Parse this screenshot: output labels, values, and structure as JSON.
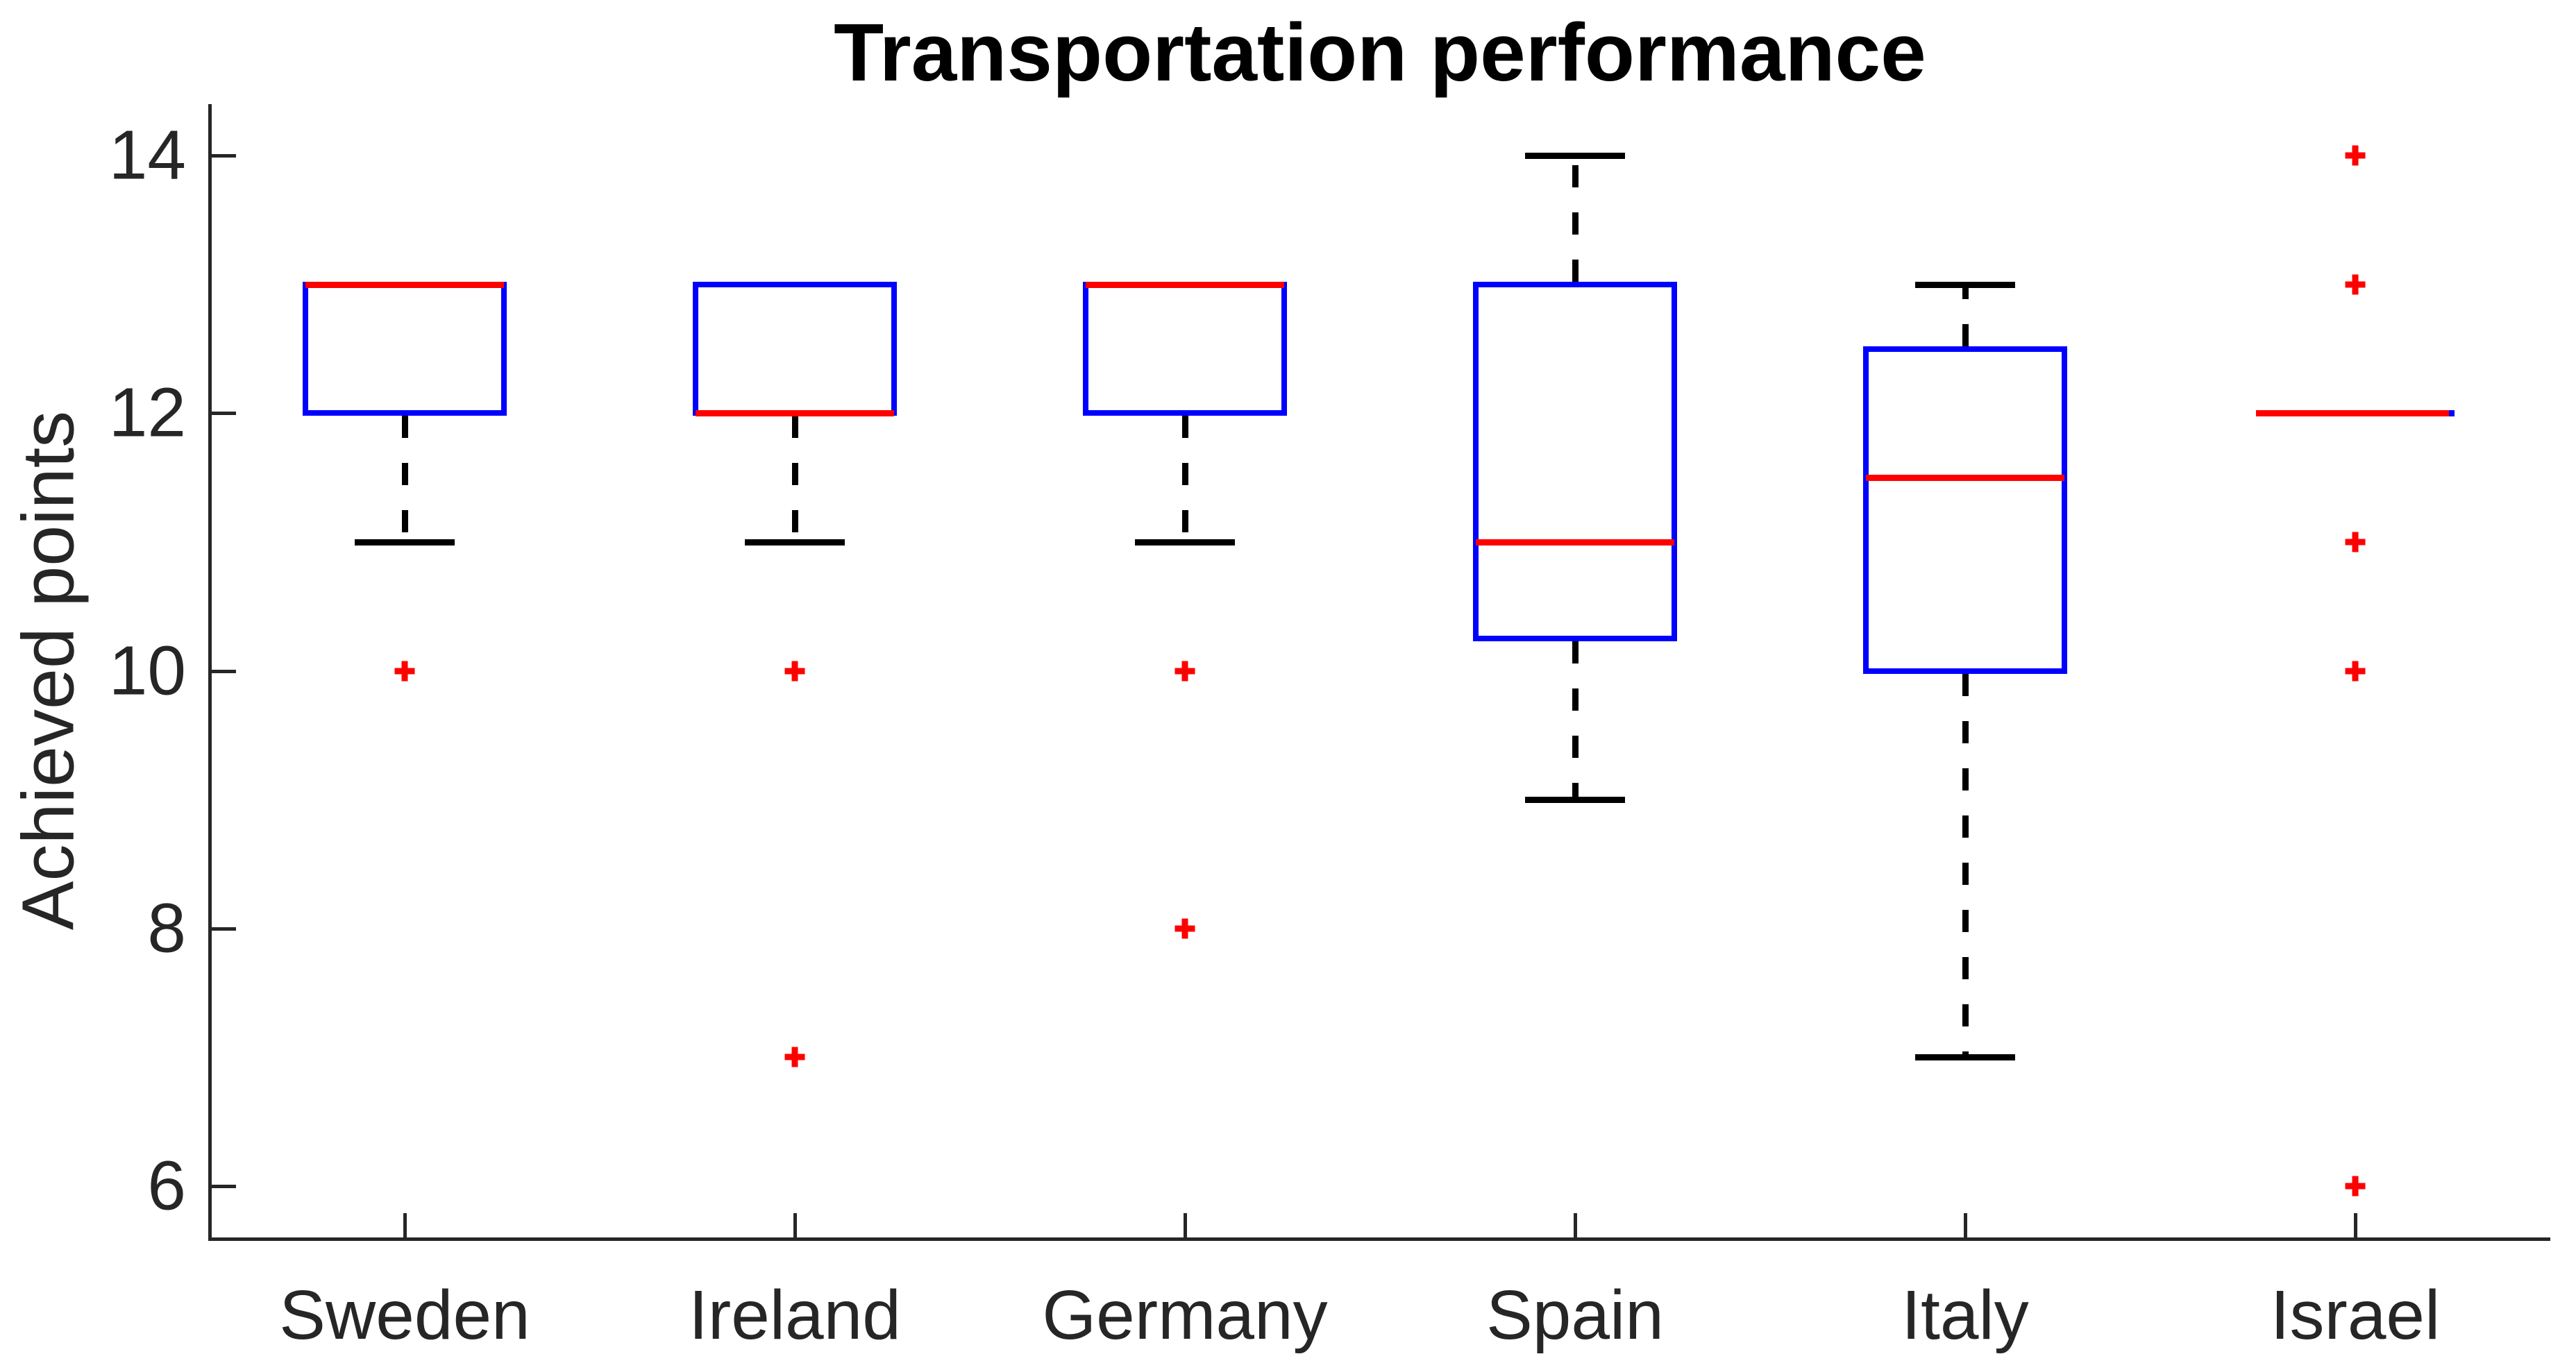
{
  "title": "Transportation performance",
  "ylabel": "Achieved points",
  "colors": {
    "box": "#0000ff",
    "median": "#ff0000",
    "outlier": "#ff0000",
    "whisker": "#000000",
    "axis_text": "#262626",
    "title_text": "#000000"
  },
  "axes": {
    "ylim": [
      5.6,
      14.4
    ],
    "yticks": [
      "6",
      "8",
      "10",
      "12",
      "14"
    ],
    "ytick_values": [
      6,
      8,
      10,
      12,
      14
    ],
    "grid": false,
    "legend": "none"
  },
  "chart_data": {
    "type": "boxplot",
    "title": "Transportation performance",
    "xlabel": "",
    "ylabel": "Achieved points",
    "ylim": [
      5.6,
      14.4
    ],
    "categories": [
      "Sweden",
      "Ireland",
      "Germany",
      "Spain",
      "Italy",
      "Israel"
    ],
    "series": [
      {
        "category": "Sweden",
        "q1": 12,
        "median": 13,
        "q3": 13,
        "whisker_low": 11,
        "whisker_high": 13,
        "outliers": [
          10
        ]
      },
      {
        "category": "Ireland",
        "q1": 12,
        "median": 12,
        "q3": 13,
        "whisker_low": 11,
        "whisker_high": 13,
        "outliers": [
          10,
          7
        ]
      },
      {
        "category": "Germany",
        "q1": 12,
        "median": 13,
        "q3": 13,
        "whisker_low": 11,
        "whisker_high": 13,
        "outliers": [
          10,
          8
        ]
      },
      {
        "category": "Spain",
        "q1": 10.25,
        "median": 11,
        "q3": 13,
        "whisker_low": 9,
        "whisker_high": 14,
        "outliers": []
      },
      {
        "category": "Italy",
        "q1": 10,
        "median": 11.5,
        "q3": 12.5,
        "whisker_low": 7,
        "whisker_high": 13,
        "outliers": []
      },
      {
        "category": "Israel",
        "q1": 12,
        "median": 12,
        "q3": 12,
        "whisker_low": 12,
        "whisker_high": 12,
        "outliers": [
          14,
          13,
          11,
          10,
          6
        ]
      }
    ]
  }
}
